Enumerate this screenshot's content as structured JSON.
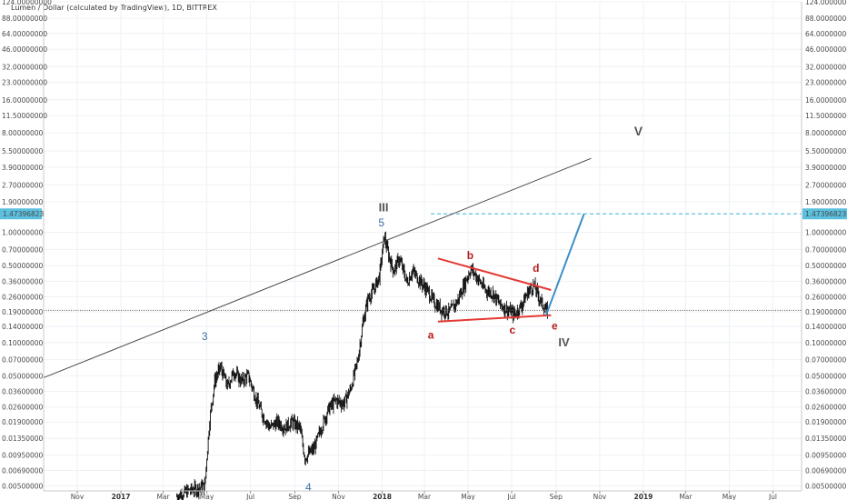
{
  "header": {
    "title": "Lumen / Dollar (calculated by TradingView), 1D, BITTREX"
  },
  "chart_data": {
    "type": "candlestick",
    "title": "Lumen / Dollar (calculated by TradingView), 1D, BITTREX",
    "y_scale": "log",
    "ylim": [
      0.0045,
      124
    ],
    "xlim": [
      "2016-09-15",
      "2019-08-10"
    ],
    "y_ticks": [
      "124.00000000",
      "88.00000000",
      "64.00000000",
      "46.00000000",
      "32.00000000",
      "23.00000000",
      "16.00000000",
      "11.50000000",
      "8.00000000",
      "5.50000000",
      "3.90000000",
      "2.70000000",
      "1.90000000",
      "1.00000000",
      "0.70000000",
      "0.50000000",
      "0.36000000",
      "0.26000000",
      "0.19000000",
      "0.14000000",
      "0.10000000",
      "0.07000000",
      "0.05000000",
      "0.03600000",
      "0.02600000",
      "0.01900000",
      "0.01350000",
      "0.00950000",
      "0.00690000",
      "0.00500000"
    ],
    "x_ticks": [
      {
        "label": "Nov",
        "date": "2016-11-01"
      },
      {
        "label": "2017",
        "date": "2017-01-01",
        "strong": true
      },
      {
        "label": "Mar",
        "date": "2017-03-01"
      },
      {
        "label": "May",
        "date": "2017-05-01"
      },
      {
        "label": "Jul",
        "date": "2017-07-01"
      },
      {
        "label": "Sep",
        "date": "2017-09-01"
      },
      {
        "label": "Nov",
        "date": "2017-11-01"
      },
      {
        "label": "2018",
        "date": "2018-01-01",
        "strong": true
      },
      {
        "label": "Mar",
        "date": "2018-03-01"
      },
      {
        "label": "May",
        "date": "2018-05-01"
      },
      {
        "label": "Jul",
        "date": "2018-07-01"
      },
      {
        "label": "Sep",
        "date": "2018-09-01"
      },
      {
        "label": "Nov",
        "date": "2018-11-01"
      },
      {
        "label": "2019",
        "date": "2019-01-01",
        "strong": true
      },
      {
        "label": "Mar",
        "date": "2019-03-01"
      },
      {
        "label": "May",
        "date": "2019-05-01"
      },
      {
        "label": "Jul",
        "date": "2019-07-01"
      }
    ],
    "price_path": [
      {
        "date": "2017-03-20",
        "price": 0.004
      },
      {
        "date": "2017-04-05",
        "price": 0.0045
      },
      {
        "date": "2017-04-28",
        "price": 0.005
      },
      {
        "date": "2017-05-05",
        "price": 0.02
      },
      {
        "date": "2017-05-12",
        "price": 0.045
      },
      {
        "date": "2017-05-20",
        "price": 0.06
      },
      {
        "date": "2017-05-30",
        "price": 0.04
      },
      {
        "date": "2017-06-08",
        "price": 0.055
      },
      {
        "date": "2017-06-18",
        "price": 0.045
      },
      {
        "date": "2017-06-28",
        "price": 0.05
      },
      {
        "date": "2017-07-08",
        "price": 0.032
      },
      {
        "date": "2017-07-18",
        "price": 0.022
      },
      {
        "date": "2017-07-28",
        "price": 0.017
      },
      {
        "date": "2017-08-08",
        "price": 0.019
      },
      {
        "date": "2017-08-18",
        "price": 0.017
      },
      {
        "date": "2017-08-28",
        "price": 0.019
      },
      {
        "date": "2017-09-08",
        "price": 0.017
      },
      {
        "date": "2017-09-15",
        "price": 0.009
      },
      {
        "date": "2017-09-28",
        "price": 0.011
      },
      {
        "date": "2017-10-08",
        "price": 0.017
      },
      {
        "date": "2017-10-18",
        "price": 0.025
      },
      {
        "date": "2017-10-28",
        "price": 0.03
      },
      {
        "date": "2017-11-08",
        "price": 0.028
      },
      {
        "date": "2017-11-18",
        "price": 0.038
      },
      {
        "date": "2017-11-28",
        "price": 0.07
      },
      {
        "date": "2017-12-05",
        "price": 0.15
      },
      {
        "date": "2017-12-12",
        "price": 0.25
      },
      {
        "date": "2017-12-20",
        "price": 0.3
      },
      {
        "date": "2017-12-28",
        "price": 0.4
      },
      {
        "date": "2018-01-04",
        "price": 0.93
      },
      {
        "date": "2018-01-10",
        "price": 0.62
      },
      {
        "date": "2018-01-17",
        "price": 0.45
      },
      {
        "date": "2018-01-25",
        "price": 0.58
      },
      {
        "date": "2018-02-05",
        "price": 0.35
      },
      {
        "date": "2018-02-12",
        "price": 0.45
      },
      {
        "date": "2018-02-22",
        "price": 0.37
      },
      {
        "date": "2018-03-05",
        "price": 0.3
      },
      {
        "date": "2018-03-15",
        "price": 0.23
      },
      {
        "date": "2018-03-25",
        "price": 0.2
      },
      {
        "date": "2018-04-05",
        "price": 0.19
      },
      {
        "date": "2018-04-15",
        "price": 0.23
      },
      {
        "date": "2018-04-25",
        "price": 0.33
      },
      {
        "date": "2018-05-05",
        "price": 0.47
      },
      {
        "date": "2018-05-15",
        "price": 0.38
      },
      {
        "date": "2018-05-25",
        "price": 0.3
      },
      {
        "date": "2018-06-05",
        "price": 0.28
      },
      {
        "date": "2018-06-15",
        "price": 0.22
      },
      {
        "date": "2018-06-25",
        "price": 0.2
      },
      {
        "date": "2018-07-05",
        "price": 0.18
      },
      {
        "date": "2018-07-15",
        "price": 0.22
      },
      {
        "date": "2018-07-25",
        "price": 0.3
      },
      {
        "date": "2018-08-01",
        "price": 0.33
      },
      {
        "date": "2018-08-08",
        "price": 0.26
      },
      {
        "date": "2018-08-15",
        "price": 0.21
      },
      {
        "date": "2018-08-20",
        "price": 0.19
      }
    ],
    "markers": {
      "current_price": {
        "value": 0.196
      },
      "target_price": {
        "label": "1.47396823",
        "value": 1.47396823,
        "color": "#5bc0de"
      }
    },
    "trendlines": [
      {
        "name": "channel",
        "color": "#4a4a4a",
        "from": {
          "date": "2016-09-15",
          "price": 0.048
        },
        "to": {
          "date": "2018-10-20",
          "price": 4.7
        }
      },
      {
        "name": "triangle-upper",
        "color": "#e53935",
        "from": {
          "date": "2018-03-20",
          "price": 0.58
        },
        "to": {
          "date": "2018-08-25",
          "price": 0.3
        }
      },
      {
        "name": "triangle-lower",
        "color": "#e53935",
        "from": {
          "date": "2018-03-20",
          "price": 0.155
        },
        "to": {
          "date": "2018-08-25",
          "price": 0.177
        }
      },
      {
        "name": "projection",
        "color": "#3d8fc6",
        "from": {
          "date": "2018-08-18",
          "price": 0.177
        },
        "to": {
          "date": "2018-10-10",
          "price": 1.47
        }
      }
    ],
    "annotations": [
      {
        "text": "III",
        "date": "2018-01-03",
        "price": 1.55,
        "color": "#555555",
        "size": 13,
        "bold": true
      },
      {
        "text": "5",
        "date": "2017-12-31",
        "price": 1.13,
        "color": "#3d6fa8",
        "size": 12,
        "bold": false
      },
      {
        "text": "3",
        "date": "2017-04-28",
        "price": 0.105,
        "color": "#3d6fa8",
        "size": 12,
        "bold": false
      },
      {
        "text": "4",
        "date": "2017-09-20",
        "price": 0.0045,
        "color": "#3d6fa8",
        "size": 12,
        "bold": false
      },
      {
        "text": "V",
        "date": "2018-12-25",
        "price": 7.6,
        "color": "#555555",
        "size": 14,
        "bold": true
      },
      {
        "text": "IV",
        "date": "2018-09-12",
        "price": 0.092,
        "color": "#555555",
        "size": 13,
        "bold": true
      },
      {
        "text": "a",
        "date": "2018-03-10",
        "price": 0.109,
        "color": "#b71c1c",
        "size": 12,
        "bold": true
      },
      {
        "text": "b",
        "date": "2018-05-04",
        "price": 0.57,
        "color": "#b71c1c",
        "size": 12,
        "bold": true
      },
      {
        "text": "c",
        "date": "2018-07-02",
        "price": 0.121,
        "color": "#b71c1c",
        "size": 12,
        "bold": true
      },
      {
        "text": "d",
        "date": "2018-08-04",
        "price": 0.44,
        "color": "#b71c1c",
        "size": 12,
        "bold": true
      },
      {
        "text": "e",
        "date": "2018-08-30",
        "price": 0.131,
        "color": "#b71c1c",
        "size": 12,
        "bold": true
      }
    ],
    "colors": {
      "candle": "#111111",
      "grid": "#eef1f5"
    }
  }
}
